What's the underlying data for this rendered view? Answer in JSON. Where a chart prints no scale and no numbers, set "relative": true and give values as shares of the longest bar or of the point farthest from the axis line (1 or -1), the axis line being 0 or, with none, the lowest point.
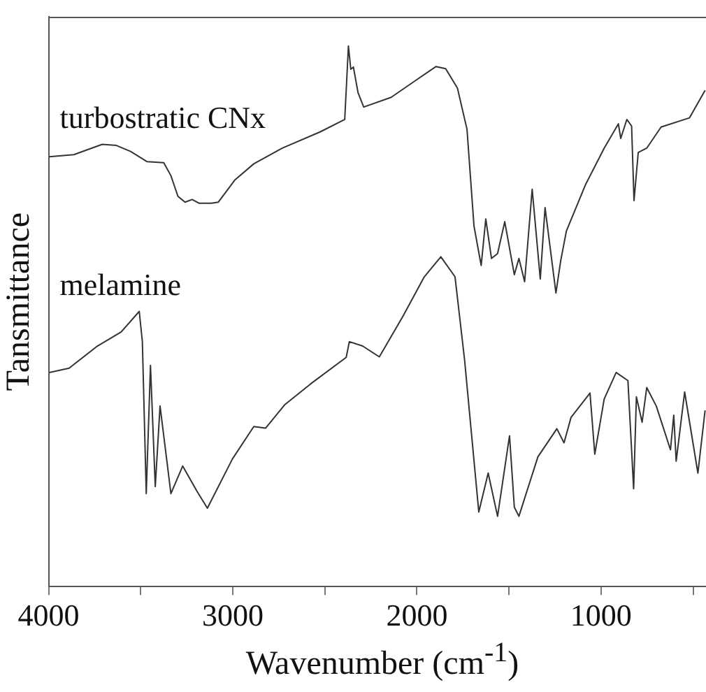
{
  "chart_data": {
    "type": "line",
    "xlabel": "Wavenumber (cm$^{-1}$)",
    "ylabel": "Tansmittance",
    "relative": true,
    "grid": false,
    "legend": false,
    "marker": "none",
    "xlim": [
      4000,
      430
    ],
    "xticks": [
      4000,
      {
        "value": 3500,
        "label": null
      },
      3000,
      {
        "value": 2500,
        "label": null
      },
      2000,
      {
        "value": 1500,
        "label": null
      },
      1000,
      {
        "value": 500,
        "label": null
      }
    ],
    "series": [
      {
        "name": "turbostratic CNx",
        "color": "#333333",
        "x": [
          3997,
          3863,
          3709,
          3632,
          3555,
          3465,
          3375,
          3336,
          3298,
          3259,
          3221,
          3182,
          3117,
          3079,
          2989,
          2886,
          2731,
          2526,
          2392,
          2372,
          2359,
          2345,
          2320,
          2289,
          2140,
          2012,
          1896,
          1844,
          1780,
          1728,
          1690,
          1651,
          1626,
          1595,
          1562,
          1523,
          1471,
          1446,
          1415,
          1374,
          1330,
          1304,
          1245,
          1219,
          1188,
          1085,
          983,
          906,
          893,
          860,
          834,
          821,
          798,
          752,
          674,
          520,
          435
        ],
        "values": [
          0.795,
          0.799,
          0.818,
          0.816,
          0.805,
          0.786,
          0.784,
          0.76,
          0.722,
          0.711,
          0.716,
          0.709,
          0.709,
          0.711,
          0.752,
          0.782,
          0.811,
          0.841,
          0.864,
          1,
          0.957,
          0.961,
          0.914,
          0.887,
          0.905,
          0.935,
          0.962,
          0.958,
          0.922,
          0.846,
          0.667,
          0.594,
          0.68,
          0.607,
          0.616,
          0.675,
          0.577,
          0.607,
          0.564,
          0.735,
          0.569,
          0.701,
          0.543,
          0.603,
          0.658,
          0.743,
          0.811,
          0.856,
          0.829,
          0.864,
          0.852,
          0.714,
          0.803,
          0.811,
          0.85,
          0.867,
          0.918
        ]
      },
      {
        "name": "melamine",
        "color": "#333333",
        "x": [
          3997,
          3889,
          3735,
          3606,
          3508,
          3491,
          3470,
          3447,
          3421,
          3395,
          3336,
          3272,
          3194,
          3138,
          3002,
          2886,
          2822,
          2719,
          2577,
          2384,
          2367,
          2295,
          2204,
          2076,
          1960,
          1870,
          1793,
          1741,
          1664,
          1613,
          1562,
          1497,
          1471,
          1446,
          1343,
          1240,
          1201,
          1163,
          1060,
          1034,
          983,
          918,
          854,
          823,
          808,
          777,
          752,
          700,
          623,
          605,
          592,
          546,
          474,
          435
        ],
        "values": [
          0.396,
          0.404,
          0.445,
          0.471,
          0.509,
          0.453,
          0.172,
          0.409,
          0.185,
          0.334,
          0.172,
          0.223,
          0.176,
          0.145,
          0.236,
          0.296,
          0.293,
          0.336,
          0.375,
          0.424,
          0.453,
          0.445,
          0.425,
          0.5,
          0.573,
          0.61,
          0.573,
          0.419,
          0.138,
          0.21,
          0.13,
          0.279,
          0.147,
          0.13,
          0.24,
          0.292,
          0.266,
          0.313,
          0.358,
          0.245,
          0.347,
          0.396,
          0.381,
          0.181,
          0.351,
          0.304,
          0.368,
          0.334,
          0.253,
          0.317,
          0.232,
          0.36,
          0.21,
          0.326
        ]
      }
    ]
  }
}
